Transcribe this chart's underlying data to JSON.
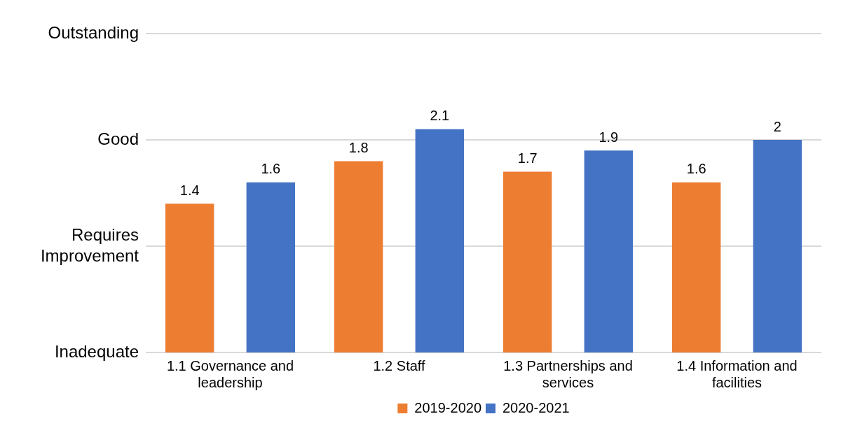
{
  "chart_data": {
    "type": "bar",
    "categories": [
      "1.1 Governance and leadership",
      "1.2 Staff",
      "1.3 Partnerships and services",
      "1.4 Information and facilities"
    ],
    "series": [
      {
        "name": "2019-2020",
        "color": "#ed7d31",
        "values": [
          1.4,
          1.8,
          1.7,
          1.6
        ]
      },
      {
        "name": "2020-2021",
        "color": "#4472c4",
        "values": [
          1.6,
          2.1,
          1.9,
          2
        ]
      }
    ],
    "ylim": [
      0,
      3
    ],
    "ref_lines": [
      {
        "axis": "y",
        "value": 0,
        "label": "Inadequate",
        "color": "#d9d9d9"
      },
      {
        "axis": "y",
        "value": 1,
        "label": "Requires Improvement",
        "color": "#d9d9d9"
      },
      {
        "axis": "y",
        "value": 2,
        "label": "Good",
        "color": "#d9d9d9"
      },
      {
        "axis": "y",
        "value": 3,
        "label": "Outstanding",
        "color": "#d9d9d9"
      }
    ],
    "legend": "bottom",
    "data_labels": true
  }
}
